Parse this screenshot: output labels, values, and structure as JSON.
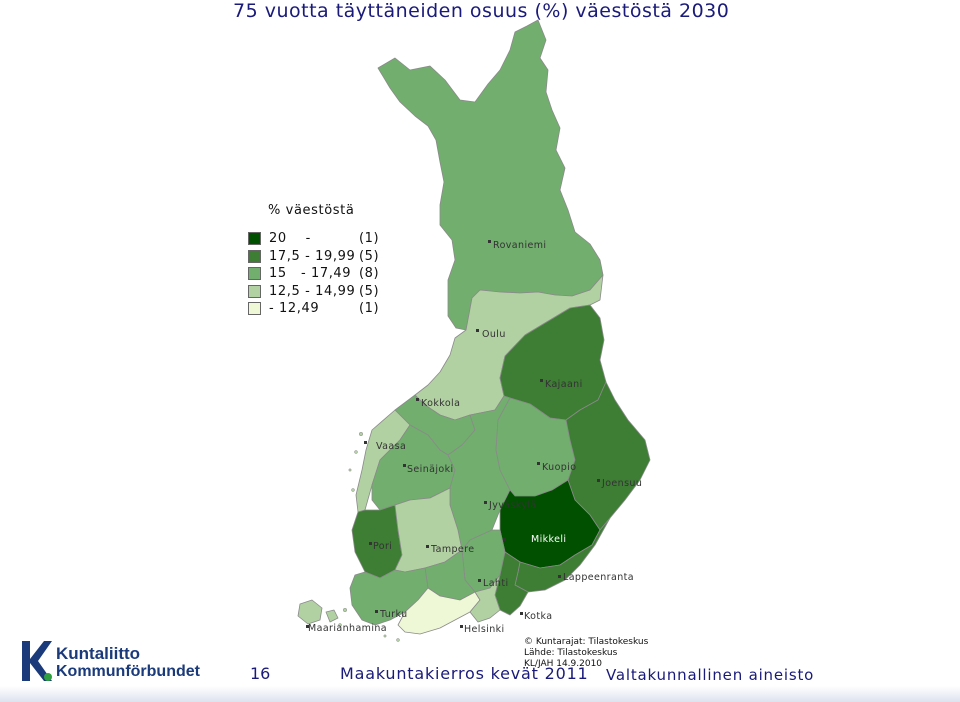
{
  "title": "75 vuotta täyttäneiden osuus (%) väestöstä 2030",
  "legend": {
    "title": "% väestöstä",
    "items": [
      {
        "range": "20    -",
        "count": "(1)",
        "color": "#005000"
      },
      {
        "range": "17,5 - 19,99",
        "count": "(5)",
        "color": "#3d7d34"
      },
      {
        "range": "15   - 17,49",
        "count": "(8)",
        "color": "#72ae6e"
      },
      {
        "range": "12,5 - 14,99",
        "count": "(5)",
        "color": "#b2d1a2"
      },
      {
        "range": "- 12,49",
        "count": "(1)",
        "color": "#eef8d6"
      }
    ]
  },
  "cities": {
    "rovaniemi": "Rovaniemi",
    "oulu": "Oulu",
    "kajaani": "Kajaani",
    "kokkola": "Kokkola",
    "vaasa": "Vaasa",
    "seinajoki": "Seinäjoki",
    "kuopio": "Kuopio",
    "joensuu": "Joensuu",
    "jyvaskyla": "Jyväskylä",
    "pori": "Pori",
    "tampere": "Tampere",
    "mikkeli": "Mikkeli",
    "lahti": "Lahti",
    "lappeenranta": "Lappeenranta",
    "turku": "Turku",
    "kotka": "Kotka",
    "maarianhamina": "Maarianhamina",
    "helsinki": "Helsinki"
  },
  "source": {
    "line1": "© Kuntarajat: Tilastokeskus",
    "line2": "Lähde: Tilastokeskus",
    "line3": "KL/JAH 14.9.2010"
  },
  "footer": {
    "page_number": "16",
    "event": "Maakuntakierros kevät 2011",
    "material": "Valtakunnallinen aineisto"
  },
  "logo": {
    "line1": "Kuntaliitto",
    "line2": "Kommunförbundet"
  }
}
